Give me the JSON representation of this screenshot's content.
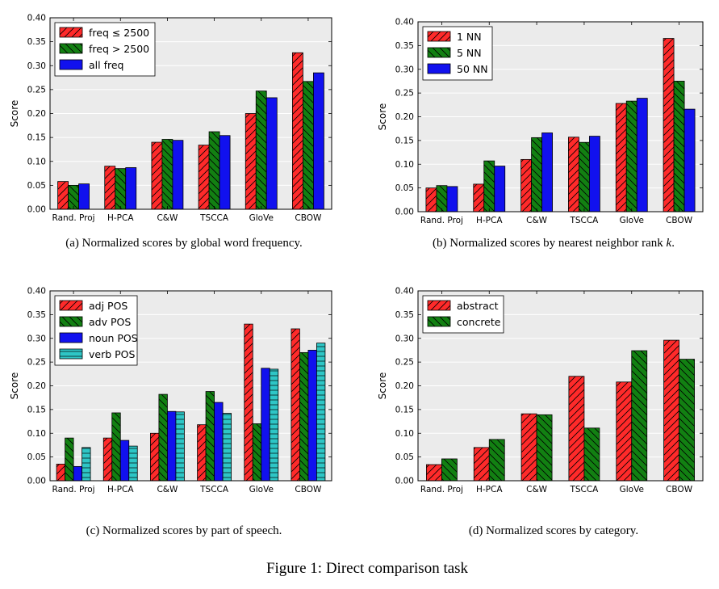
{
  "figure_caption": "Figure 1: Direct comparison task",
  "colors": {
    "red": "#ff2a2a",
    "green": "#128012",
    "blue": "#1111ee",
    "cyan": "#2ec6c6",
    "plot_bg": "#ebebeb",
    "grid": "#ffffff"
  },
  "chart_data": [
    {
      "id": "a",
      "type": "bar",
      "caption": "(a)  Normalized scores by global word frequency.",
      "ylabel": "Score",
      "ylim": [
        0,
        0.4
      ],
      "yticks": [
        "0.00",
        "0.05",
        "0.10",
        "0.15",
        "0.20",
        "0.25",
        "0.30",
        "0.35",
        "0.40"
      ],
      "grid": true,
      "legend_position": "top-left",
      "categories": [
        "Rand. Proj",
        "H-PCA",
        "C&W",
        "TSCCA",
        "GloVe",
        "CBOW"
      ],
      "series": [
        {
          "name": "freq ≤ 2500",
          "color": "#ff2a2a",
          "hatch": "diag",
          "values": [
            0.058,
            0.09,
            0.14,
            0.134,
            0.2,
            0.327
          ]
        },
        {
          "name": "freq > 2500",
          "color": "#128012",
          "hatch": "back",
          "values": [
            0.05,
            0.085,
            0.146,
            0.162,
            0.247,
            0.267
          ]
        },
        {
          "name": "all freq",
          "color": "#1111ee",
          "hatch": "none",
          "values": [
            0.053,
            0.087,
            0.144,
            0.154,
            0.233,
            0.285
          ]
        }
      ]
    },
    {
      "id": "b",
      "type": "bar",
      "caption": "(b)  Normalized scores by nearest neighbor rank ",
      "caption_var": "k",
      "caption_end": ".",
      "ylabel": "Score",
      "ylim": [
        0,
        0.4
      ],
      "yticks": [
        "0.00",
        "0.05",
        "0.10",
        "0.15",
        "0.20",
        "0.25",
        "0.30",
        "0.35",
        "0.40"
      ],
      "grid": true,
      "legend_position": "top-left",
      "categories": [
        "Rand. Proj",
        "H-PCA",
        "C&W",
        "TSCCA",
        "GloVe",
        "CBOW"
      ],
      "series": [
        {
          "name": "1 NN",
          "color": "#ff2a2a",
          "hatch": "diag",
          "values": [
            0.05,
            0.058,
            0.11,
            0.157,
            0.228,
            0.365
          ]
        },
        {
          "name": "5 NN",
          "color": "#128012",
          "hatch": "back",
          "values": [
            0.055,
            0.107,
            0.156,
            0.146,
            0.233,
            0.275
          ]
        },
        {
          "name": "50 NN",
          "color": "#1111ee",
          "hatch": "none",
          "values": [
            0.053,
            0.096,
            0.166,
            0.159,
            0.239,
            0.216
          ]
        }
      ]
    },
    {
      "id": "c",
      "type": "bar",
      "caption": "(c)  Normalized scores by part of speech.",
      "ylabel": "Score",
      "ylim": [
        0,
        0.4
      ],
      "yticks": [
        "0.00",
        "0.05",
        "0.10",
        "0.15",
        "0.20",
        "0.25",
        "0.30",
        "0.35",
        "0.40"
      ],
      "grid": true,
      "legend_position": "top-left",
      "categories": [
        "Rand. Proj",
        "H-PCA",
        "C&W",
        "TSCCA",
        "GloVe",
        "CBOW"
      ],
      "series": [
        {
          "name": "adj POS",
          "color": "#ff2a2a",
          "hatch": "diag",
          "values": [
            0.035,
            0.09,
            0.1,
            0.118,
            0.33,
            0.32
          ]
        },
        {
          "name": "adv POS",
          "color": "#128012",
          "hatch": "back",
          "values": [
            0.09,
            0.143,
            0.182,
            0.188,
            0.12,
            0.27
          ]
        },
        {
          "name": "noun POS",
          "color": "#1111ee",
          "hatch": "none",
          "values": [
            0.03,
            0.085,
            0.146,
            0.165,
            0.237,
            0.275
          ]
        },
        {
          "name": "verb POS",
          "color": "#2ec6c6",
          "hatch": "horiz",
          "values": [
            0.07,
            0.073,
            0.145,
            0.142,
            0.235,
            0.29
          ]
        }
      ]
    },
    {
      "id": "d",
      "type": "bar",
      "caption": "(d)  Normalized scores by category.",
      "ylabel": "Score",
      "ylim": [
        0,
        0.4
      ],
      "yticks": [
        "0.00",
        "0.05",
        "0.10",
        "0.15",
        "0.20",
        "0.25",
        "0.30",
        "0.35",
        "0.40"
      ],
      "grid": true,
      "legend_position": "top-left",
      "categories": [
        "Rand. Proj",
        "H-PCA",
        "C&W",
        "TSCCA",
        "GloVe",
        "CBOW"
      ],
      "series": [
        {
          "name": "abstract",
          "color": "#ff2a2a",
          "hatch": "diag",
          "values": [
            0.034,
            0.07,
            0.141,
            0.22,
            0.208,
            0.296
          ]
        },
        {
          "name": "concrete",
          "color": "#128012",
          "hatch": "back",
          "values": [
            0.046,
            0.087,
            0.139,
            0.111,
            0.274,
            0.256
          ]
        }
      ]
    }
  ]
}
